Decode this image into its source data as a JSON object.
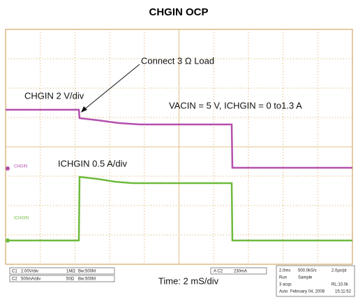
{
  "header": {
    "title": "CHGIN OCP"
  },
  "annotations": {
    "load": "Connect 3 Ω Load",
    "chgin_scale": "CHGIN 2 V/div",
    "conditions": "VACIN = 5 V, ICHGIN = 0 to1.3  A",
    "ichgin_scale": "ICHGIN 0.5 A/div",
    "time": "Time: 2 mS/div"
  },
  "channel_tags": {
    "ch1": "CHGIN",
    "ch2": "ICHGIN"
  },
  "status_bar": {
    "ch1": {
      "name": "C1",
      "scale": "2.00V/div",
      "coupling": "1MΩ",
      "bandwidth": "Bw:500M"
    },
    "ch2": {
      "name": "C2",
      "scale": "500mA/div",
      "coupling": "50Ω",
      "bandwidth": "Bw:500M"
    },
    "trigger": {
      "source": "A C2",
      "level": "230mA"
    },
    "acquisition": {
      "timebase": "2.0ms",
      "rate": "500.0kS/s",
      "resolution": "2.0µs/pt",
      "state": "Run",
      "mode": "Sample",
      "acqs": "3 acqs",
      "record": "RL:10.0k",
      "trigger_mode": "Auto",
      "date": "February 04, 2008",
      "time": "15:11:52"
    }
  }
}
